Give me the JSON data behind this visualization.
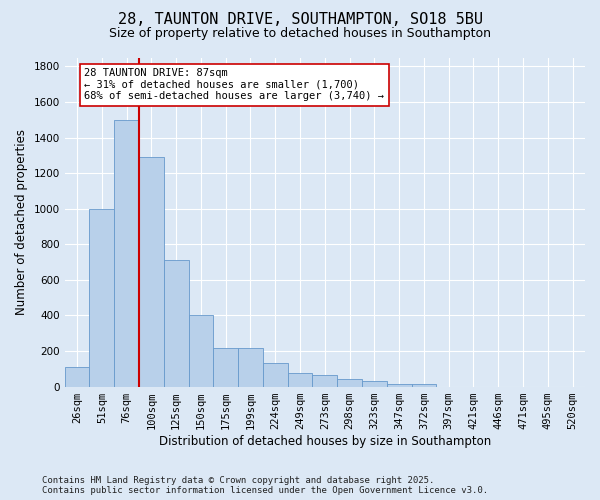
{
  "title_line1": "28, TAUNTON DRIVE, SOUTHAMPTON, SO18 5BU",
  "title_line2": "Size of property relative to detached houses in Southampton",
  "xlabel": "Distribution of detached houses by size in Southampton",
  "ylabel": "Number of detached properties",
  "categories": [
    "26sqm",
    "51sqm",
    "76sqm",
    "100sqm",
    "125sqm",
    "150sqm",
    "175sqm",
    "199sqm",
    "224sqm",
    "249sqm",
    "273sqm",
    "298sqm",
    "323sqm",
    "347sqm",
    "372sqm",
    "397sqm",
    "421sqm",
    "446sqm",
    "471sqm",
    "495sqm",
    "520sqm"
  ],
  "values": [
    110,
    1000,
    1500,
    1290,
    710,
    405,
    215,
    215,
    135,
    75,
    65,
    40,
    30,
    15,
    15,
    0,
    0,
    0,
    0,
    0,
    0
  ],
  "bar_color": "#b8d0ea",
  "bar_edge_color": "#6699cc",
  "background_color": "#dce8f5",
  "grid_color": "#ffffff",
  "vline_x": 2.5,
  "vline_color": "#cc0000",
  "annotation_text": "28 TAUNTON DRIVE: 87sqm\n← 31% of detached houses are smaller (1,700)\n68% of semi-detached houses are larger (3,740) →",
  "annotation_box_color": "#ffffff",
  "annotation_box_edge": "#cc0000",
  "ylim": [
    0,
    1850
  ],
  "yticks": [
    0,
    200,
    400,
    600,
    800,
    1000,
    1200,
    1400,
    1600,
    1800
  ],
  "footer_line1": "Contains HM Land Registry data © Crown copyright and database right 2025.",
  "footer_line2": "Contains public sector information licensed under the Open Government Licence v3.0.",
  "title_fontsize": 11,
  "subtitle_fontsize": 9,
  "axis_label_fontsize": 8.5,
  "tick_fontsize": 7.5,
  "annotation_fontsize": 7.5,
  "footer_fontsize": 6.5
}
